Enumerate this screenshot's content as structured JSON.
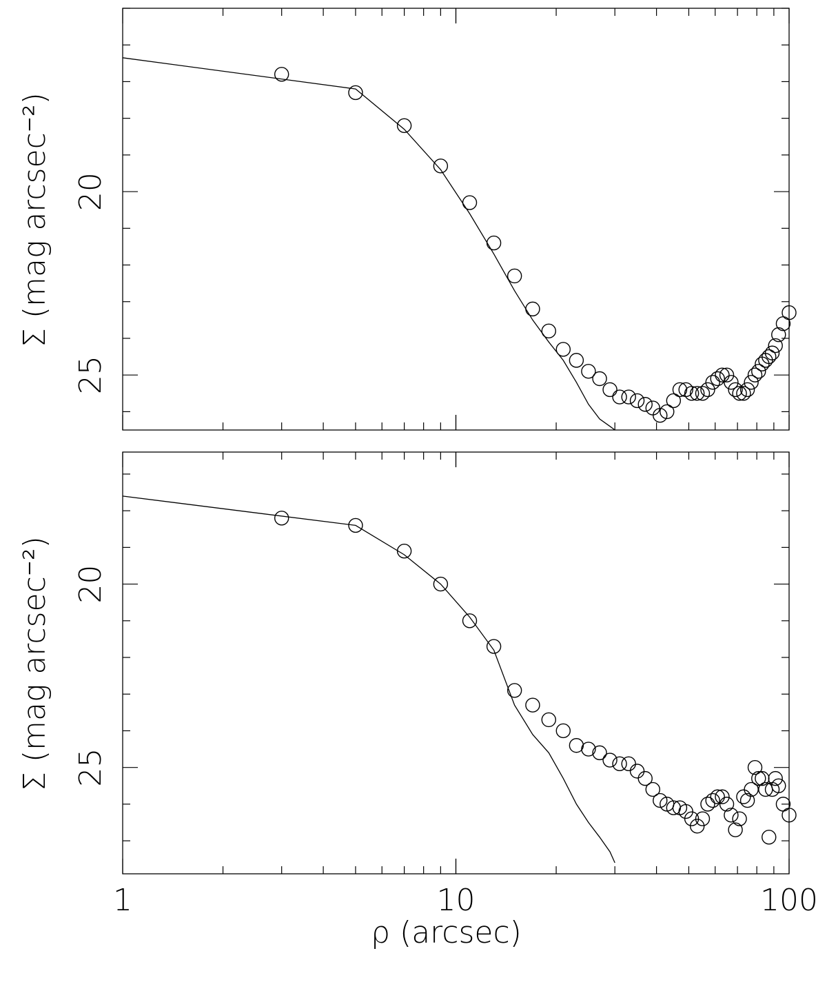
{
  "chart_data": [
    {
      "type": "scatter",
      "panel": "top",
      "xscale": "log",
      "xlim": [
        1,
        100
      ],
      "ylim": [
        26.5,
        15.0
      ],
      "y_inverted": true,
      "ylabel": "Σ (mag arcsec⁻²)",
      "xlabel": "",
      "x_tick_labels": [],
      "y_tick_labels": [
        "20",
        "25"
      ],
      "y_ticks": [
        20,
        25
      ],
      "grid": false,
      "series": [
        {
          "style": "open-circle",
          "points": [
            [
              3.0,
              16.8
            ],
            [
              5.0,
              17.3
            ],
            [
              7.0,
              18.2
            ],
            [
              9.0,
              19.3
            ],
            [
              11.0,
              20.3
            ],
            [
              13.0,
              21.4
            ],
            [
              15.0,
              22.3
            ],
            [
              17.0,
              23.2
            ],
            [
              19.0,
              23.8
            ],
            [
              21.0,
              24.3
            ],
            [
              23.0,
              24.6
            ],
            [
              25.0,
              24.9
            ],
            [
              27.0,
              25.1
            ],
            [
              29.0,
              25.4
            ],
            [
              31.0,
              25.6
            ],
            [
              33.0,
              25.6
            ],
            [
              35.0,
              25.7
            ],
            [
              37.0,
              25.8
            ],
            [
              39.0,
              25.9
            ],
            [
              41.0,
              26.1
            ],
            [
              43.0,
              26.0
            ],
            [
              45.0,
              25.7
            ],
            [
              47.0,
              25.4
            ],
            [
              49.0,
              25.4
            ],
            [
              51.0,
              25.5
            ],
            [
              53.0,
              25.5
            ],
            [
              55.0,
              25.5
            ],
            [
              57.0,
              25.4
            ],
            [
              59.0,
              25.2
            ],
            [
              61.0,
              25.1
            ],
            [
              63.0,
              25.0
            ],
            [
              65.0,
              25.0
            ],
            [
              67.0,
              25.2
            ],
            [
              69.0,
              25.4
            ],
            [
              71.0,
              25.5
            ],
            [
              73.0,
              25.5
            ],
            [
              75.0,
              25.4
            ],
            [
              77.0,
              25.2
            ],
            [
              79.0,
              25.0
            ],
            [
              81.0,
              24.9
            ],
            [
              83.0,
              24.7
            ],
            [
              85.0,
              24.6
            ],
            [
              87.0,
              24.5
            ],
            [
              89.0,
              24.4
            ],
            [
              91.0,
              24.2
            ],
            [
              93.0,
              23.9
            ],
            [
              96.0,
              23.6
            ],
            [
              100.0,
              23.3
            ]
          ]
        },
        {
          "style": "solid-line",
          "points": [
            [
              1.0,
              16.35
            ],
            [
              5.0,
              17.2
            ],
            [
              7.0,
              18.3
            ],
            [
              9.0,
              19.4
            ],
            [
              11.0,
              20.6
            ],
            [
              13.0,
              21.7
            ],
            [
              15.0,
              22.7
            ],
            [
              17.0,
              23.5
            ],
            [
              19.0,
              24.1
            ],
            [
              21.0,
              24.6
            ],
            [
              23.0,
              25.2
            ],
            [
              25.0,
              25.8
            ],
            [
              27.0,
              26.2
            ],
            [
              29.0,
              26.4
            ],
            [
              30.0,
              26.5
            ]
          ]
        }
      ]
    },
    {
      "type": "scatter",
      "panel": "bottom",
      "xscale": "log",
      "xlim": [
        1,
        100
      ],
      "ylim": [
        27.9,
        16.4
      ],
      "y_inverted": true,
      "ylabel": "Σ (mag arcsec⁻²)",
      "xlabel": "ρ (arcsec)",
      "x_tick_labels": [
        "1",
        "10",
        "100"
      ],
      "x_ticks": [
        1,
        10,
        100
      ],
      "y_tick_labels": [
        "20",
        "25"
      ],
      "y_ticks": [
        20,
        25
      ],
      "grid": false,
      "series": [
        {
          "style": "open-circle",
          "points": [
            [
              3.0,
              18.2
            ],
            [
              5.0,
              18.4
            ],
            [
              7.0,
              19.1
            ],
            [
              9.0,
              20.0
            ],
            [
              11.0,
              21.0
            ],
            [
              13.0,
              21.7
            ],
            [
              15.0,
              22.9
            ],
            [
              17.0,
              23.3
            ],
            [
              19.0,
              23.7
            ],
            [
              21.0,
              24.0
            ],
            [
              23.0,
              24.4
            ],
            [
              25.0,
              24.5
            ],
            [
              27.0,
              24.6
            ],
            [
              29.0,
              24.8
            ],
            [
              31.0,
              24.9
            ],
            [
              33.0,
              24.9
            ],
            [
              35.0,
              25.1
            ],
            [
              37.0,
              25.3
            ],
            [
              39.0,
              25.6
            ],
            [
              41.0,
              25.9
            ],
            [
              43.0,
              26.0
            ],
            [
              45.0,
              26.1
            ],
            [
              47.0,
              26.1
            ],
            [
              49.0,
              26.2
            ],
            [
              51.0,
              26.4
            ],
            [
              53.0,
              26.6
            ],
            [
              55.0,
              26.4
            ],
            [
              57.0,
              26.0
            ],
            [
              59.0,
              25.9
            ],
            [
              61.0,
              25.8
            ],
            [
              63.0,
              25.8
            ],
            [
              65.0,
              26.0
            ],
            [
              67.0,
              26.3
            ],
            [
              69.0,
              26.7
            ],
            [
              71.0,
              26.4
            ],
            [
              73.0,
              25.8
            ],
            [
              75.0,
              25.9
            ],
            [
              77.0,
              25.6
            ],
            [
              79.0,
              25.0
            ],
            [
              81.0,
              25.3
            ],
            [
              83.0,
              25.3
            ],
            [
              85.0,
              25.6
            ],
            [
              87.0,
              26.9
            ],
            [
              89.0,
              25.6
            ],
            [
              91.0,
              25.3
            ],
            [
              93.0,
              25.5
            ],
            [
              96.0,
              26.0
            ],
            [
              100.0,
              26.3
            ]
          ]
        },
        {
          "style": "solid-line",
          "points": [
            [
              1.0,
              17.6
            ],
            [
              5.0,
              18.4
            ],
            [
              7.0,
              19.2
            ],
            [
              9.0,
              20.0
            ],
            [
              11.0,
              20.9
            ],
            [
              13.0,
              21.8
            ],
            [
              15.0,
              23.3
            ],
            [
              17.0,
              24.1
            ],
            [
              19.0,
              24.6
            ],
            [
              21.0,
              25.3
            ],
            [
              23.0,
              26.0
            ],
            [
              25.0,
              26.5
            ],
            [
              27.0,
              26.9
            ],
            [
              29.0,
              27.3
            ],
            [
              30.0,
              27.6
            ]
          ]
        }
      ]
    }
  ]
}
